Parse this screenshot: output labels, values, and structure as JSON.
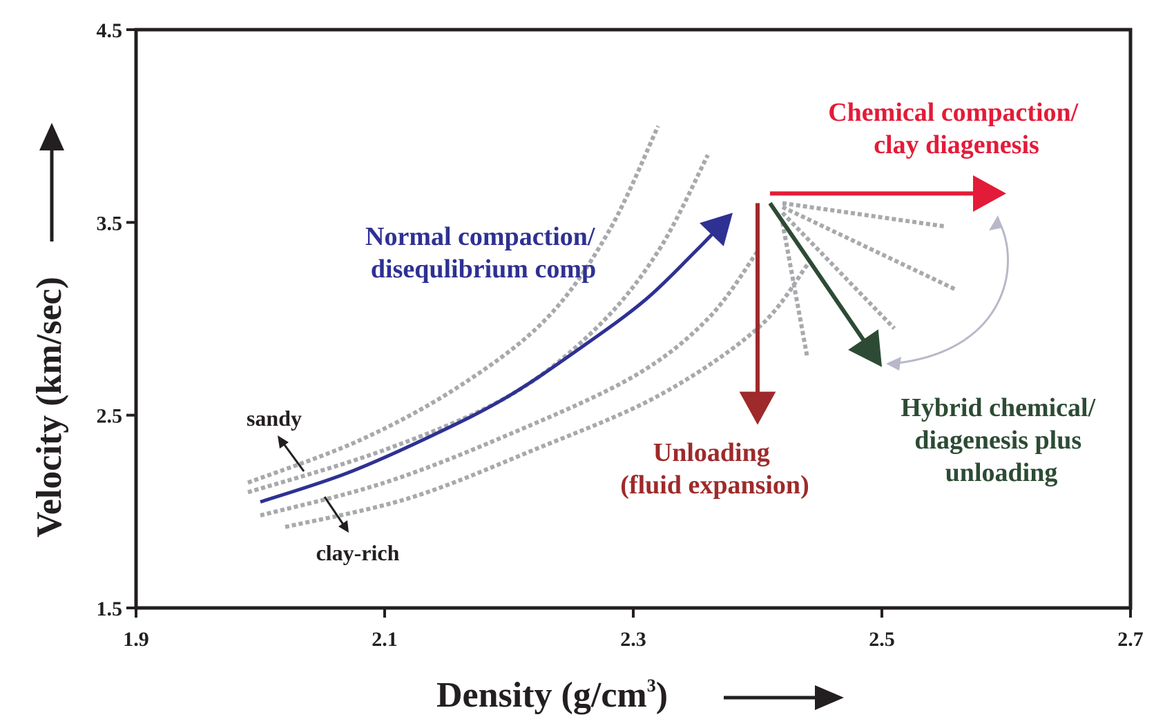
{
  "chart_data": {
    "type": "line",
    "title": "",
    "xlabel": "Density (g/cm",
    "xlabel_sup": "3",
    "xlabel_close": ")",
    "ylabel": "Velocity (km/sec)",
    "xlim": [
      1.9,
      2.7
    ],
    "ylim": [
      1.5,
      4.5
    ],
    "x_ticks": [
      1.9,
      2.1,
      2.3,
      2.5,
      2.7
    ],
    "x_tick_labels": [
      "1.9",
      "2.1",
      "2.3",
      "2.5",
      "2.7"
    ],
    "y_ticks": [
      1.5,
      2.5,
      3.5,
      4.5
    ],
    "y_tick_labels": [
      "1.5",
      "2.5",
      "3.5",
      "4.5"
    ],
    "grid": false,
    "series": [
      {
        "name": "Normal compaction/ disequlibrium comp",
        "style": "solid-arrow",
        "color": "#2e3192",
        "x": [
          2.0,
          2.07,
          2.14,
          2.2,
          2.26,
          2.31,
          2.35,
          2.38
        ],
        "y": [
          2.05,
          2.2,
          2.4,
          2.6,
          2.86,
          3.1,
          3.35,
          3.55
        ]
      },
      {
        "name": "Chemical compaction/ clay diagenesis",
        "style": "arrow",
        "color": "#e31b38",
        "x": [
          2.41,
          2.6
        ],
        "y": [
          3.65,
          3.65
        ]
      },
      {
        "name": "Unloading (fluid expansion)",
        "style": "arrow",
        "color": "#9e2a2b",
        "x": [
          2.4,
          2.4
        ],
        "y": [
          3.6,
          2.45
        ]
      },
      {
        "name": "Hybrid chemical/ diagenesis plus unloading",
        "style": "arrow",
        "color": "#2d4b34",
        "x": [
          2.41,
          2.5
        ],
        "y": [
          3.6,
          2.75
        ]
      },
      {
        "name": "trend-upper-1",
        "style": "dotted",
        "color": "#a7a9ac",
        "x": [
          1.99,
          2.08,
          2.16,
          2.23,
          2.28,
          2.32
        ],
        "y": [
          2.15,
          2.37,
          2.65,
          3.0,
          3.45,
          4.0
        ]
      },
      {
        "name": "trend-upper-2",
        "style": "dotted",
        "color": "#a7a9ac",
        "x": [
          1.99,
          2.1,
          2.2,
          2.27,
          2.32,
          2.36
        ],
        "y": [
          2.1,
          2.32,
          2.6,
          2.95,
          3.35,
          3.85
        ]
      },
      {
        "name": "trend-lower-1",
        "style": "dotted",
        "color": "#a7a9ac",
        "x": [
          2.0,
          2.1,
          2.2,
          2.3,
          2.36,
          2.4
        ],
        "y": [
          1.98,
          2.15,
          2.4,
          2.7,
          3.0,
          3.35
        ]
      },
      {
        "name": "trend-lower-2",
        "style": "dotted",
        "color": "#a7a9ac",
        "x": [
          2.02,
          2.12,
          2.22,
          2.32,
          2.4,
          2.44
        ],
        "y": [
          1.92,
          2.07,
          2.32,
          2.6,
          2.95,
          3.28
        ]
      },
      {
        "name": "fan-1",
        "style": "dotted",
        "color": "#a7a9ac",
        "x": [
          2.42,
          2.55
        ],
        "y": [
          3.6,
          3.48
        ]
      },
      {
        "name": "fan-2",
        "style": "dotted",
        "color": "#a7a9ac",
        "x": [
          2.42,
          2.56
        ],
        "y": [
          3.58,
          3.15
        ]
      },
      {
        "name": "fan-3",
        "style": "dotted",
        "color": "#a7a9ac",
        "x": [
          2.42,
          2.51
        ],
        "y": [
          3.55,
          2.95
        ]
      },
      {
        "name": "fan-4",
        "style": "dotted",
        "color": "#a7a9ac",
        "x": [
          2.42,
          2.44
        ],
        "y": [
          3.5,
          2.8
        ]
      }
    ],
    "annotations": {
      "normal": [
        "Normal compaction/",
        "disequlibrium comp"
      ],
      "chemical": [
        "Chemical compaction/",
        "clay diagenesis"
      ],
      "unloading": [
        "Unloading",
        "(fluid expansion)"
      ],
      "hybrid": [
        "Hybrid chemical/",
        "diagenesis plus",
        "unloading"
      ],
      "sandy": "sandy",
      "clay_rich": "clay-rich"
    }
  },
  "colors": {
    "axis": "#231f20",
    "normal": "#2e3192",
    "chemical": "#e31b38",
    "unloading": "#9e2a2b",
    "hybrid": "#2d4b34",
    "dotted": "#a7a9ac",
    "curved_arrow": "#b7b8c8"
  }
}
